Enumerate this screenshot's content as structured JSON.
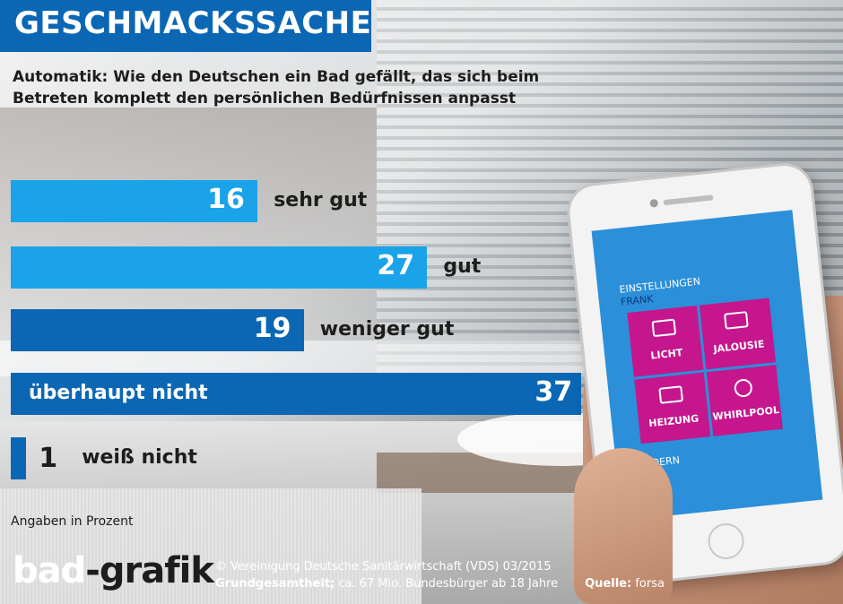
{
  "header": {
    "title": "GESCHMACKSSACHE",
    "subtitle": "Automatik: Wie den Deutschen ein Bad gefällt, das sich beim Betreten komplett den persönlichen Bedürfnissen anpasst"
  },
  "chart_data": {
    "type": "bar",
    "orientation": "horizontal",
    "categories": [
      "sehr gut",
      "gut",
      "weniger gut",
      "überhaupt nicht",
      "weiß nicht"
    ],
    "values": [
      16,
      27,
      19,
      37,
      1
    ],
    "colors": [
      "#1aa3e8",
      "#1aa3e8",
      "#0b67b3",
      "#0b67b3",
      "#0b67b3"
    ],
    "unit_note": "Angaben in Prozent"
  },
  "footer": {
    "logo_part1": "bad",
    "logo_part2": "-grafik",
    "copyright": "© Vereinigung Deutsche Sanitärwirtschaft (VDS)  03/2015",
    "base_label": "Grundgesamtheit;",
    "base_text": " ca. 67 Mio. Bundesbürger ab 18 Jahre",
    "source_label": "Quelle:",
    "source_text": " forsa"
  },
  "phone": {
    "screen_title": "EINSTELLUNGEN",
    "user": "FRANK",
    "tiles": [
      "LICHT",
      "JALOUSIE",
      "HEIZUNG",
      "WHIRLPOOL"
    ],
    "action": "ÄNDERN",
    "tile_color": "#c6168d",
    "screen_color": "#2b8fd9"
  }
}
